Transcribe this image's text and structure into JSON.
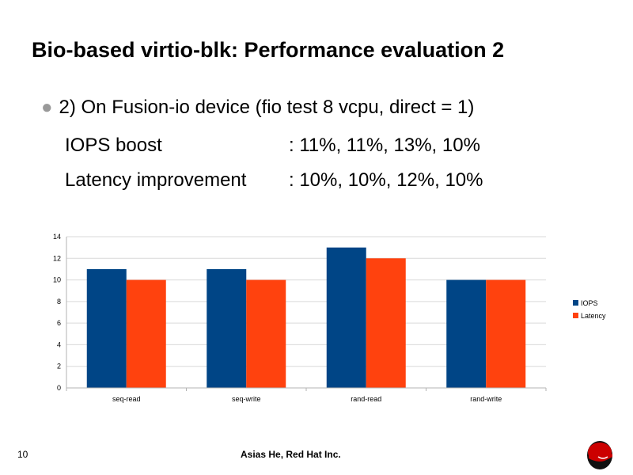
{
  "slide": {
    "title": "Bio-based virtio-blk: Performance evaluation 2",
    "bullet": "2) On Fusion-io device (fio test 8 vcpu, direct = 1)",
    "rows": [
      {
        "label": "IOPS boost",
        "value": ": 11%, 11%, 13%, 10%"
      },
      {
        "label": "Latency improvement",
        "value": ": 10%, 10%, 12%, 10%"
      }
    ],
    "page_number": "10",
    "footer": "Asias  He, Red Hat Inc."
  },
  "chart_data": {
    "type": "bar",
    "categories": [
      "seq-read",
      "seq-write",
      "rand-read",
      "rand-write"
    ],
    "series": [
      {
        "name": "IOPS",
        "values": [
          11,
          11,
          13,
          10
        ],
        "color": "#004586"
      },
      {
        "name": "Latency",
        "values": [
          10,
          10,
          12,
          10
        ],
        "color": "#ff420e"
      }
    ],
    "ylim": [
      0,
      14
    ],
    "yticks": [
      0,
      2,
      4,
      6,
      8,
      10,
      12,
      14
    ],
    "grid": true,
    "legend": "right"
  }
}
